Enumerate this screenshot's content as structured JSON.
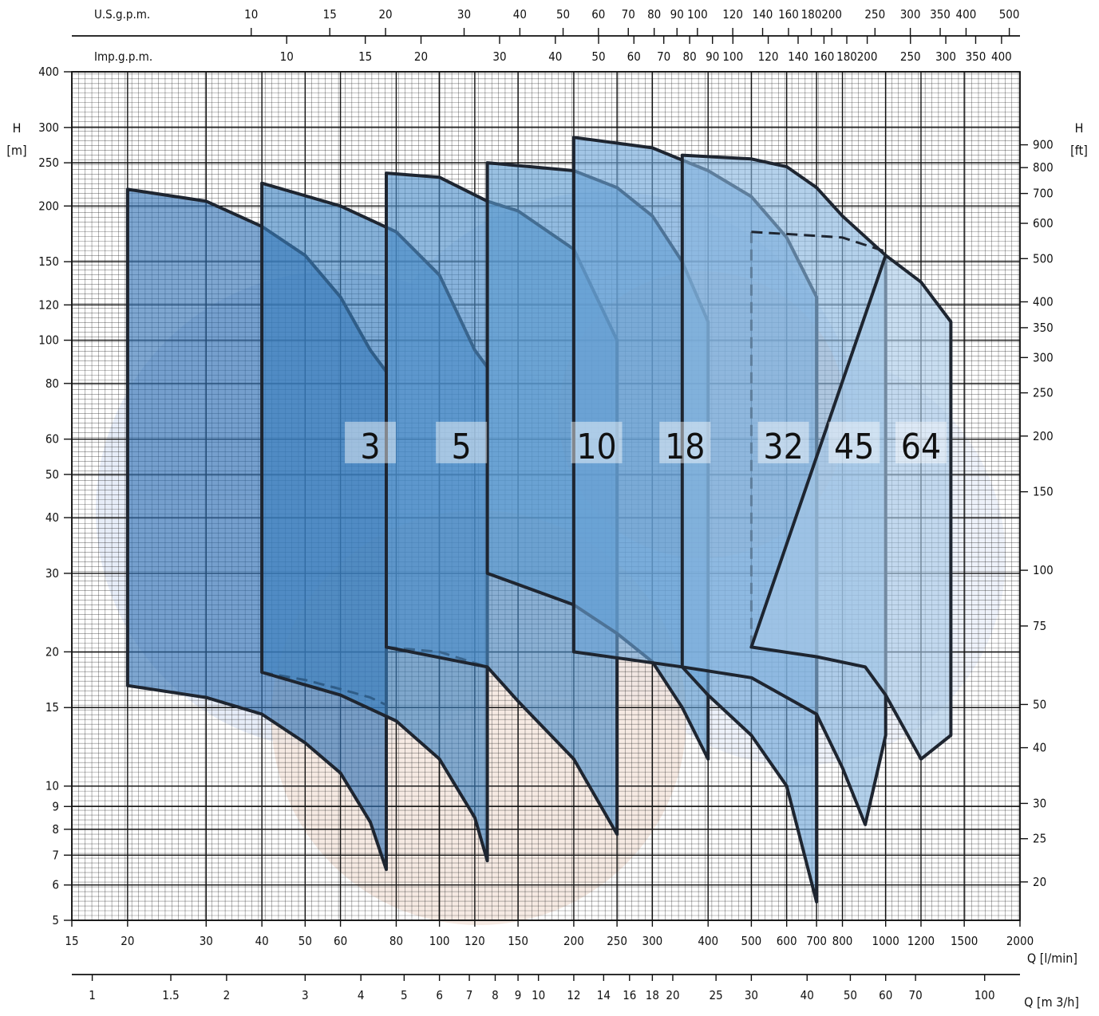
{
  "chart_data": {
    "type": "area",
    "x_axis": {
      "scale": "log",
      "unit_label": "Q [l/min]",
      "range": [
        15,
        2000
      ],
      "ticks": [
        15,
        20,
        30,
        40,
        50,
        60,
        80,
        100,
        120,
        150,
        200,
        250,
        300,
        400,
        500,
        600,
        700,
        800,
        1000,
        1200,
        1500,
        2000
      ]
    },
    "x_axis_m3h": {
      "unit_label": "Q [m 3/h]",
      "ticks": [
        1,
        1.5,
        2,
        3,
        4,
        5,
        6,
        7,
        8,
        9,
        10,
        12,
        14,
        16,
        18,
        20,
        25,
        30,
        40,
        50,
        60,
        70,
        100
      ]
    },
    "x_axis_usgpm": {
      "unit_label": "U.S.g.p.m.",
      "ticks": [
        10,
        15,
        20,
        30,
        40,
        50,
        60,
        70,
        80,
        90,
        100,
        120,
        140,
        160,
        180,
        200,
        250,
        300,
        350,
        400,
        500
      ]
    },
    "x_axis_impgpm": {
      "unit_label": "Imp.g.p.m.",
      "ticks": [
        10,
        15,
        20,
        30,
        40,
        50,
        60,
        70,
        80,
        90,
        100,
        120,
        140,
        160,
        180,
        200,
        250,
        300,
        350,
        400
      ]
    },
    "y_axis": {
      "scale": "log",
      "unit_label": "H",
      "unit": "[m]",
      "range": [
        5,
        400
      ],
      "ticks": [
        5,
        6,
        7,
        8,
        9,
        10,
        15,
        20,
        30,
        40,
        50,
        60,
        80,
        100,
        120,
        150,
        200,
        250,
        300,
        400
      ]
    },
    "y_axis_ft": {
      "unit_label": "H",
      "unit": "[ft]",
      "ticks": [
        20,
        25,
        30,
        40,
        50,
        75,
        100,
        150,
        200,
        250,
        300,
        350,
        400,
        500,
        600,
        700,
        800,
        900
      ]
    },
    "grid": true,
    "series": [
      {
        "name": "3",
        "label_at": [
          70,
          58
        ],
        "color": "#2e6fb3",
        "top": [
          [
            20,
            218
          ],
          [
            30,
            205
          ],
          [
            40,
            180
          ],
          [
            50,
            155
          ],
          [
            60,
            125
          ],
          [
            70,
            95
          ],
          [
            76,
            85
          ]
        ],
        "bottom": [
          [
            76,
            6.5
          ],
          [
            70,
            8.3
          ],
          [
            60,
            10.7
          ],
          [
            50,
            12.5
          ],
          [
            40,
            14.5
          ],
          [
            30,
            15.8
          ],
          [
            20,
            16.8
          ]
        ],
        "dashed_left": [
          [
            40,
            180
          ],
          [
            40,
            18
          ]
        ],
        "dashed_bottom": [
          [
            40,
            18
          ],
          [
            50,
            17.3
          ],
          [
            60,
            16.5
          ],
          [
            70,
            15.8
          ],
          [
            76,
            15.2
          ]
        ]
      },
      {
        "name": "5",
        "label_at": [
          112,
          58
        ],
        "color": "#3a7fbf",
        "top": [
          [
            40,
            225
          ],
          [
            60,
            200
          ],
          [
            80,
            175
          ],
          [
            100,
            140
          ],
          [
            120,
            95
          ],
          [
            128,
            87
          ]
        ],
        "bottom": [
          [
            128,
            6.8
          ],
          [
            120,
            8.5
          ],
          [
            100,
            11.5
          ],
          [
            80,
            14
          ],
          [
            60,
            16
          ],
          [
            40,
            18
          ]
        ],
        "dashed_left": [
          [
            76,
            235
          ],
          [
            76,
            20.5
          ]
        ],
        "dashed_bottom": [
          [
            76,
            20.5
          ],
          [
            100,
            20
          ],
          [
            128,
            18.5
          ]
        ]
      },
      {
        "name": "10",
        "label_at": [
          225,
          58
        ],
        "color": "#4a8cc8",
        "top": [
          [
            76,
            237
          ],
          [
            100,
            232
          ],
          [
            128,
            205
          ],
          [
            150,
            195
          ],
          [
            200,
            160
          ],
          [
            250,
            100
          ]
        ],
        "bottom": [
          [
            250,
            7.8
          ],
          [
            200,
            11.5
          ],
          [
            150,
            15.5
          ],
          [
            128,
            18.5
          ],
          [
            76,
            20.5
          ]
        ],
        "dashed_left": [
          [
            200,
            285
          ],
          [
            200,
            20
          ]
        ]
      },
      {
        "name": "18",
        "label_at": [
          355,
          58
        ],
        "color": "#5a99cf",
        "top": [
          [
            128,
            250
          ],
          [
            200,
            240
          ],
          [
            250,
            220
          ],
          [
            300,
            190
          ],
          [
            350,
            150
          ],
          [
            400,
            110
          ]
        ],
        "bottom": [
          [
            400,
            11.5
          ],
          [
            350,
            15
          ],
          [
            300,
            19
          ],
          [
            250,
            22
          ],
          [
            200,
            25.5
          ],
          [
            128,
            30
          ]
        ],
        "dashed_left": [
          [
            350,
            260
          ],
          [
            350,
            18.5
          ]
        ]
      },
      {
        "name": "32",
        "label_at": [
          590,
          58
        ],
        "color": "#6aa3d6",
        "top": [
          [
            200,
            285
          ],
          [
            300,
            270
          ],
          [
            400,
            240
          ],
          [
            500,
            210
          ],
          [
            600,
            170
          ],
          [
            700,
            125
          ]
        ],
        "bottom": [
          [
            700,
            5.5
          ],
          [
            600,
            10
          ],
          [
            500,
            13
          ],
          [
            400,
            16
          ],
          [
            350,
            18.5
          ],
          [
            200,
            20
          ]
        ],
        "dashed_left": [
          [
            500,
            175
          ],
          [
            500,
            20.5
          ]
        ]
      },
      {
        "name": "45",
        "label_at": [
          850,
          58
        ],
        "color": "#86b4de",
        "top": [
          [
            350,
            260
          ],
          [
            500,
            255
          ],
          [
            600,
            245
          ],
          [
            700,
            220
          ],
          [
            800,
            190
          ],
          [
            1000,
            155
          ]
        ],
        "bottom": [
          [
            1000,
            13
          ],
          [
            900,
            8.2
          ],
          [
            800,
            11
          ],
          [
            700,
            14.5
          ],
          [
            500,
            17.5
          ],
          [
            350,
            18.5
          ]
        ],
        "dashed_top": [
          [
            500,
            175
          ],
          [
            800,
            170
          ],
          [
            1000,
            158
          ]
        ]
      },
      {
        "name": "64",
        "label_at": [
          1200,
          58
        ],
        "color": "#a7c8e7",
        "top": [
          [
            1000,
            155
          ],
          [
            1200,
            135
          ],
          [
            1400,
            110
          ]
        ],
        "bottom": [
          [
            1400,
            13
          ],
          [
            1200,
            11.5
          ],
          [
            1000,
            16
          ],
          [
            900,
            18.5
          ],
          [
            700,
            19.5
          ],
          [
            500,
            20.5
          ]
        ]
      }
    ]
  }
}
